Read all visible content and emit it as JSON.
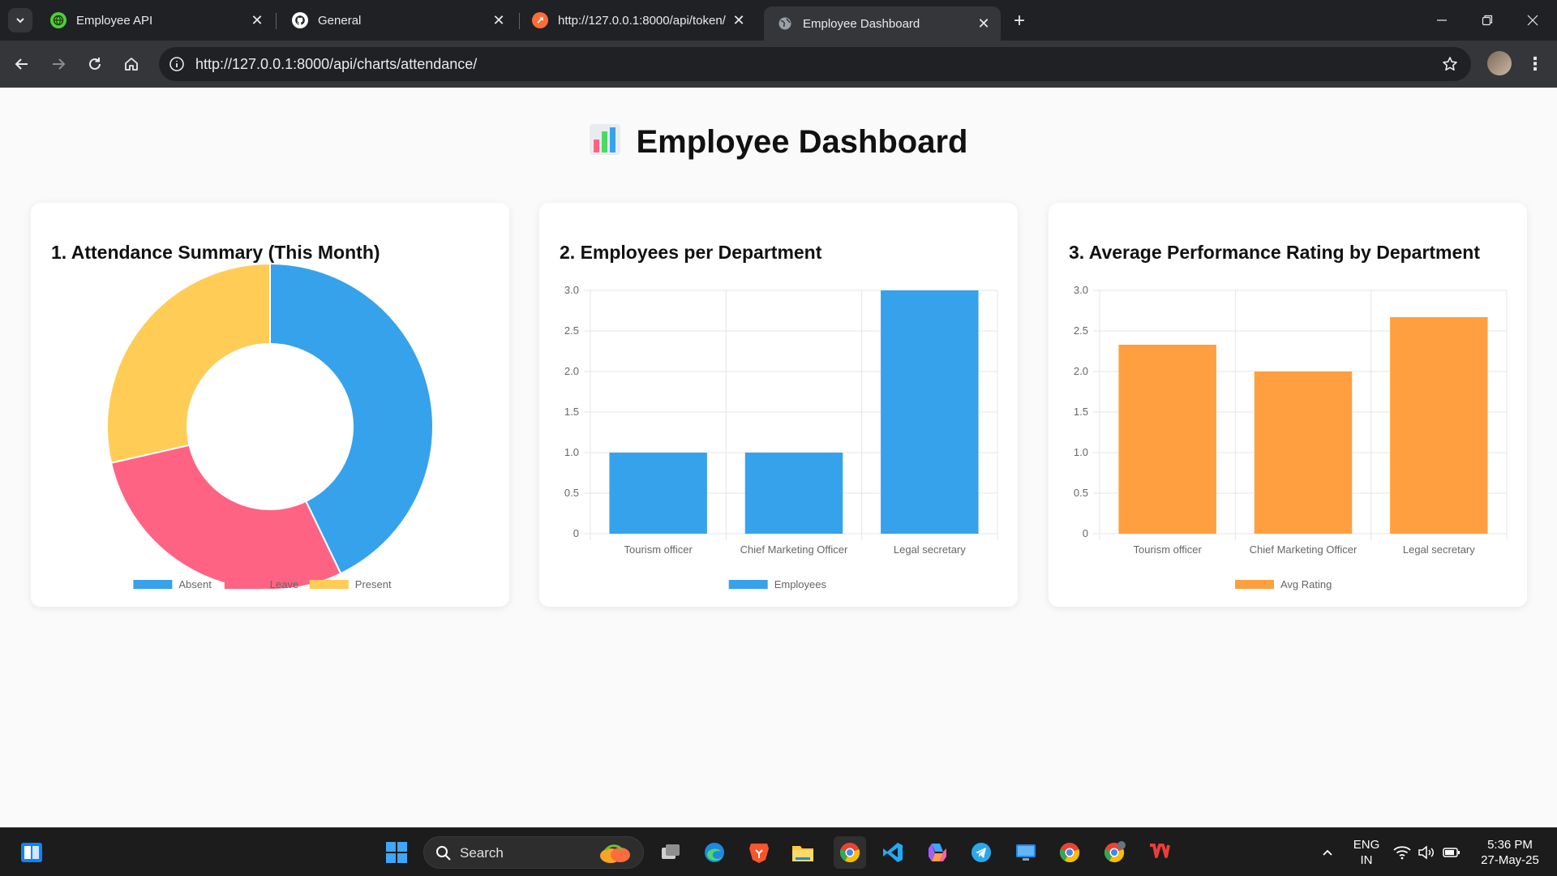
{
  "browser": {
    "tabs": [
      {
        "title": "Employee API",
        "favicon": "globe-green-icon",
        "active": false
      },
      {
        "title": "General",
        "favicon": "github-icon",
        "active": false
      },
      {
        "title": "http://127.0.0.1:8000/api/token/",
        "favicon": "postman-icon",
        "active": false
      },
      {
        "title": "Employee Dashboard",
        "favicon": "globe-icon",
        "active": true
      }
    ],
    "url": "http://127.0.0.1:8000/api/charts/attendance/"
  },
  "page": {
    "title": "Employee Dashboard",
    "title_icon": "bar-chart-emoji"
  },
  "cards": [
    {
      "heading": "1. Attendance Summary (This Month)"
    },
    {
      "heading": "2. Employees per Department"
    },
    {
      "heading": "3. Average Performance Rating by Department"
    }
  ],
  "chart_data": [
    {
      "type": "pie",
      "variant": "doughnut",
      "title": "1. Attendance Summary (This Month)",
      "labels": [
        "Absent",
        "Leave",
        "Present"
      ],
      "values": [
        3,
        2,
        2
      ],
      "colors": [
        "#36a2eb",
        "#ff6384",
        "#ffcd56"
      ],
      "legend": "bottom"
    },
    {
      "type": "bar",
      "title": "2. Employees per Department",
      "categories": [
        "Tourism officer",
        "Chief Marketing Officer",
        "Legal secretary"
      ],
      "series": [
        {
          "name": "Employees",
          "values": [
            1,
            1,
            3
          ],
          "color": "#36a2eb"
        }
      ],
      "ylim": [
        0,
        3
      ],
      "yticks": [
        "0",
        "0.5",
        "1.0",
        "1.5",
        "2.0",
        "2.5",
        "3.0"
      ],
      "grid": true,
      "legend": "bottom"
    },
    {
      "type": "bar",
      "title": "3. Average Performance Rating by Department",
      "categories": [
        "Tourism officer",
        "Chief Marketing Officer",
        "Legal secretary"
      ],
      "series": [
        {
          "name": "Avg Rating",
          "values": [
            2.33,
            2.0,
            2.67
          ],
          "color": "#ff9f40"
        }
      ],
      "ylim": [
        0,
        3
      ],
      "yticks": [
        "0",
        "0.5",
        "1.0",
        "1.5",
        "2.0",
        "2.5",
        "3.0"
      ],
      "grid": true,
      "legend": "bottom"
    }
  ],
  "taskbar": {
    "search_label": "Search",
    "language": "ENG",
    "region": "IN",
    "time": "5:36 PM",
    "date": "27-May-25",
    "pinned": [
      "start-icon",
      "task-view-icon",
      "edge-icon",
      "brave-icon",
      "file-explorer-icon",
      "chrome-icon",
      "vscode-icon",
      "copilot-icon",
      "telegram-icon",
      "remote-desktop-icon",
      "chrome-profile-icon",
      "chrome-profile-2-icon",
      "wps-office-icon"
    ]
  }
}
